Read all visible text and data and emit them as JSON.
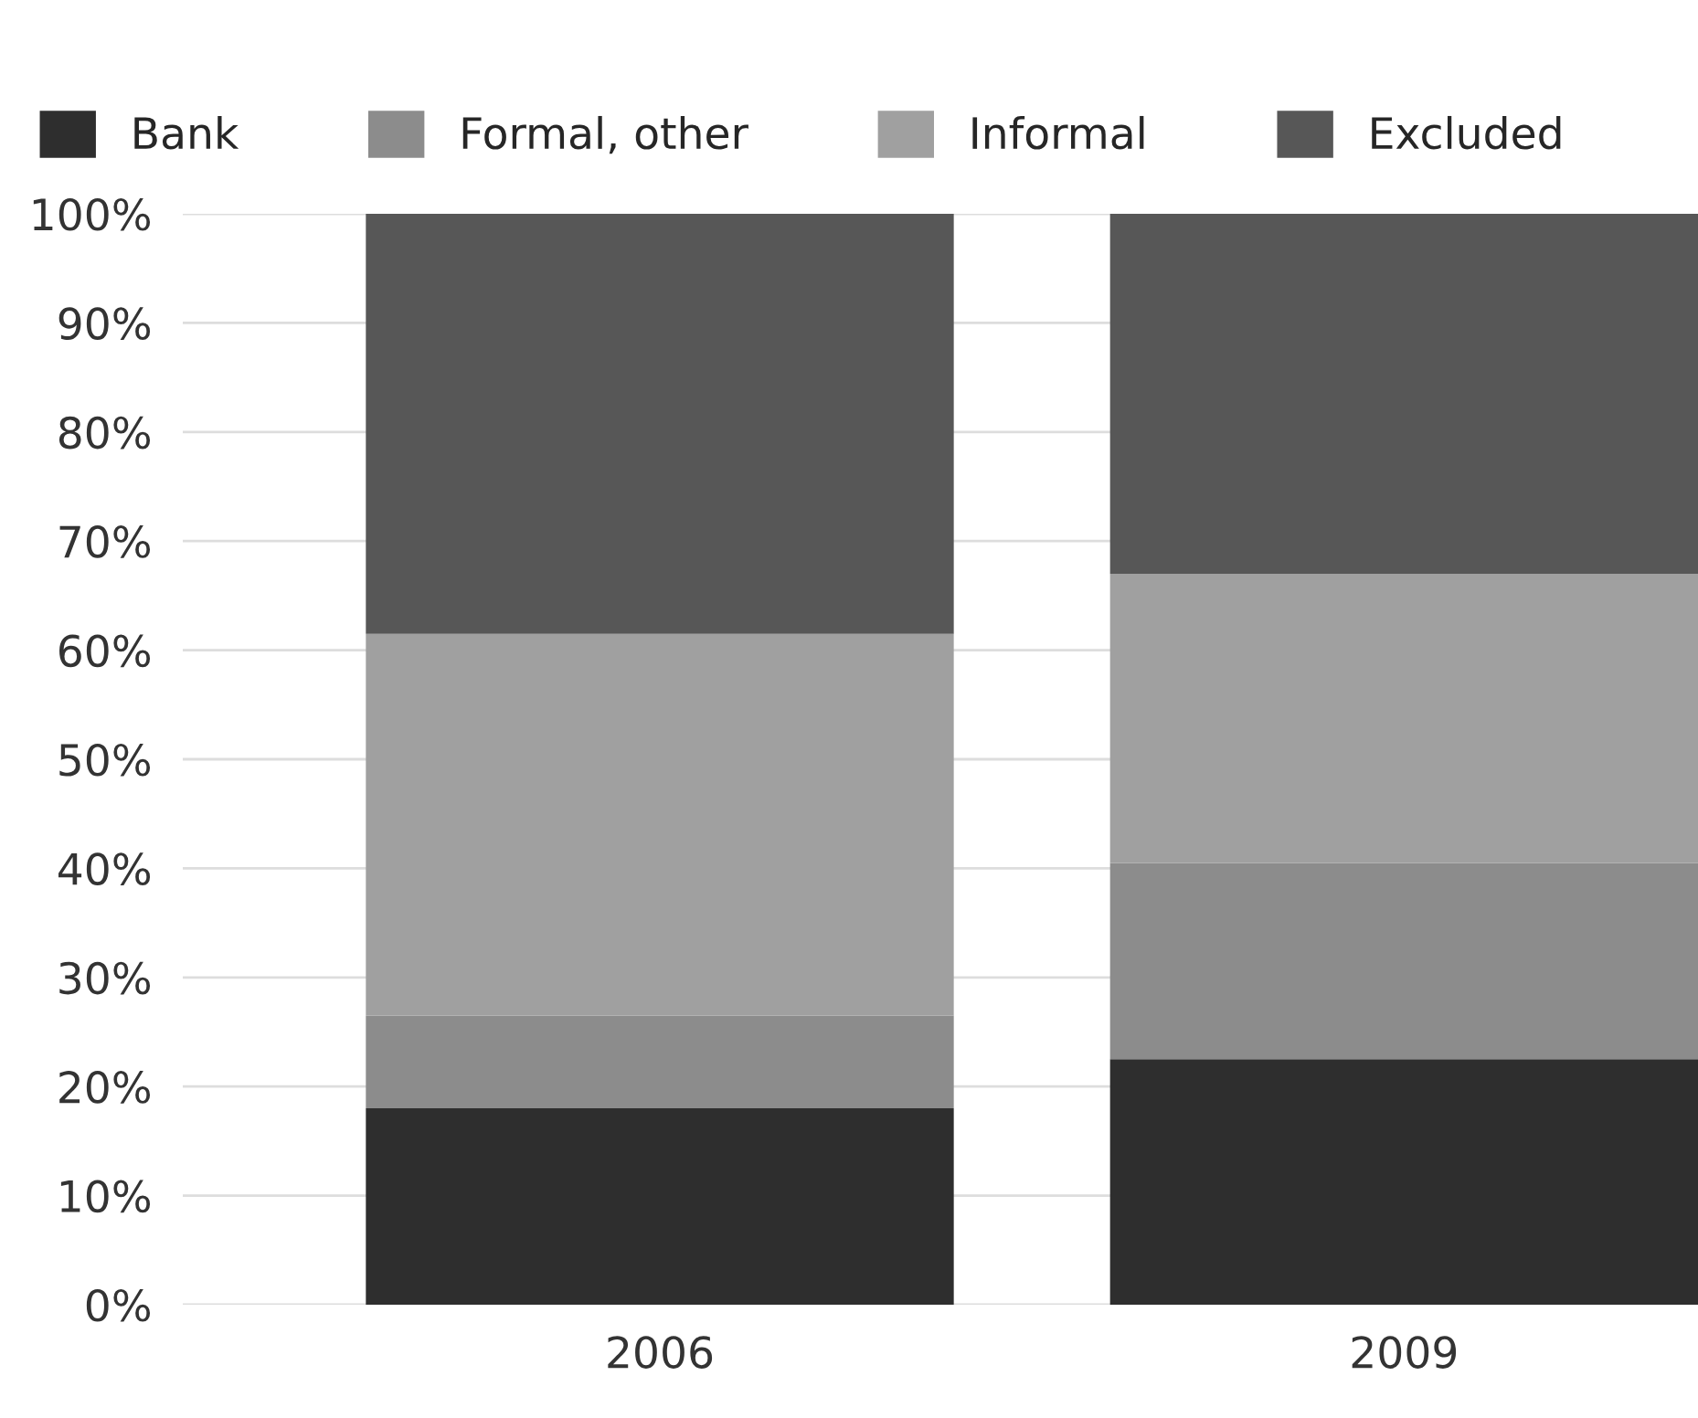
{
  "chart_data": {
    "type": "bar",
    "stacked": true,
    "categories": [
      "2006",
      "2009"
    ],
    "series": [
      {
        "name": "Bank",
        "color": "#2e2e2e",
        "values": [
          18,
          22.5
        ]
      },
      {
        "name": "Formal, other",
        "color": "#8c8c8c",
        "values": [
          8.5,
          18
        ]
      },
      {
        "name": "Informal",
        "color": "#a0a0a0",
        "values": [
          35,
          26.5
        ]
      },
      {
        "name": "Excluded",
        "color": "#575757",
        "values": [
          38.5,
          33
        ]
      }
    ],
    "ylim": [
      0,
      100
    ],
    "yticks": [
      {
        "value": 0,
        "label": "0%"
      },
      {
        "value": 10,
        "label": "10%"
      },
      {
        "value": 20,
        "label": "20%"
      },
      {
        "value": 30,
        "label": "30%"
      },
      {
        "value": 40,
        "label": "40%"
      },
      {
        "value": 50,
        "label": "50%"
      },
      {
        "value": 60,
        "label": "60%"
      },
      {
        "value": 70,
        "label": "70%"
      },
      {
        "value": 80,
        "label": "80%"
      },
      {
        "value": 90,
        "label": "90%"
      },
      {
        "value": 100,
        "label": "100%"
      }
    ],
    "grid": "y",
    "legend": "top left"
  }
}
